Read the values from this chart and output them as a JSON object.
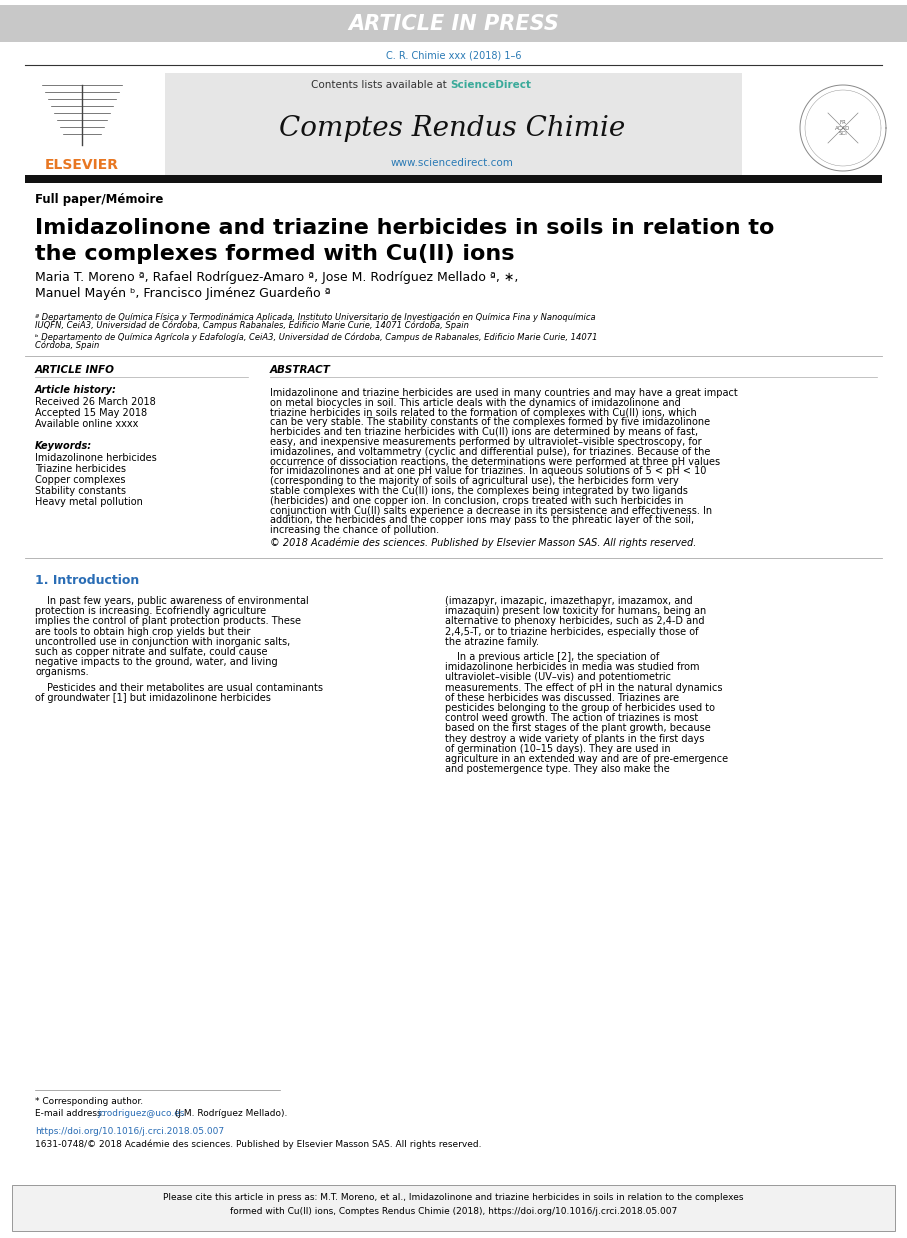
{
  "bg_color": "#ffffff",
  "header_bar_color": "#c8c8c8",
  "header_bar_text": "ARTICLE IN PRESS",
  "header_bar_text_color": "#ffffff",
  "citation_text": "C. R. Chimie xxx (2018) 1–6",
  "citation_color": "#2a7ab5",
  "journal_name": "Comptes Rendus Chimie",
  "contents_text": "Contents lists available at ",
  "sciencedirect_text": "ScienceDirect",
  "sciencedirect_color": "#3aaa9a",
  "website_text": "www.sciencedirect.com",
  "website_color": "#2a7ab5",
  "elsevier_text": "ELSEVIER",
  "elsevier_color": "#e87722",
  "section_label": "Full paper/Mémoire",
  "article_title_line1": "Imidazolinone and triazine herbicides in soils in relation to",
  "article_title_line2": "the complexes formed with Cu(II) ions",
  "authors_line1": "Maria T. Moreno ª, Rafael Rodríguez-Amaro ª, Jose M. Rodríguez Mellado ª, ∗,",
  "authors_line2": "Manuel Mayén ᵇ, Francisco Jiménez Guardeño ª",
  "affil_a_label": "ª",
  "affil_a_text": " Departamento de Química Física y Termodinámica Aplicada, Instituto Universitario de Investigación en Química Fina y Nanoquímica IUQFN, CeiA3, Universidad de Córdoba, Campus Rabanales, Edificio Marie Curie, 14071 Córdoba, Spain",
  "affil_b_label": "ᵇ",
  "affil_b_text": " Departamento de Química Agrícola y Edafología, CeiA3, Universidad de Córdoba, Campus de Rabanales, Edificio Marie Curie, 14071 Córdoba, Spain",
  "article_info_title": "ARTICLE INFO",
  "article_history_title": "Article history:",
  "received": "Received 26 March 2018",
  "accepted": "Accepted 15 May 2018",
  "available": "Available online xxxx",
  "keywords_title": "Keywords:",
  "keywords": [
    "Imidazolinone herbicides",
    "Triazine herbicides",
    "Copper complexes",
    "Stability constants",
    "Heavy metal pollution"
  ],
  "abstract_title": "ABSTRACT",
  "abstract_text": "Imidazolinone and triazine herbicides are used in many countries and may have a great impact on metal biocycles in soil. This article deals with the dynamics of imidazolinone and triazine herbicides in soils related to the formation of complexes with Cu(II) ions, which can be very stable. The stability constants of the complexes formed by five imidazolinone herbicides and ten triazine herbicides with Cu(II) ions are determined by means of fast, easy, and inexpensive measurements performed by ultraviolet–visible spectroscopy, for imidazolines, and voltammetry (cyclic and differential pulse), for triazines. Because of the occurrence of dissociation reactions, the determinations were performed at three pH values for imidazolinones and at one pH value for triazines. In aqueous solutions of 5 < pH < 10 (corresponding to the majority of soils of agricultural use), the herbicides form very stable complexes with the Cu(II) ions, the complexes being integrated by two ligands (herbicides) and one copper ion. In conclusion, crops treated with such herbicides in conjunction with Cu(II) salts experience a decrease in its persistence and effectiveness. In addition, the herbicides and the copper ions may pass to the phreatic layer of the soil, increasing the chance of pollution.",
  "copyright_text": "© 2018 Académie des sciences. Published by Elsevier Masson SAS. All rights reserved.",
  "intro_heading": "1. Introduction",
  "intro_col1_p1": "In past few years, public awareness of environmental protection is increasing. Ecofriendly agriculture implies the control of plant protection products. These are tools to obtain high crop yields but their uncontrolled use in conjunction with inorganic salts, such as copper nitrate and sulfate, could cause negative impacts to the ground, water, and living organisms.",
  "intro_col1_p2": "Pesticides and their metabolites are usual contaminants of groundwater [1] but imidazolinone herbicides",
  "intro_col2_p1": "(imazapyr, imazapic, imazethapyr, imazamox, and imazaquin) present low toxicity for humans, being an alternative to phenoxy herbicides, such as 2,4-D and 2,4,5-T, or to triazine herbicides, especially those of the atrazine family.",
  "intro_col2_p2": "In a previous article [2], the speciation of imidazolinone herbicides in media was studied from ultraviolet–visible (UV–vis) and potentiometric measurements. The effect of pH in the natural dynamics of these herbicides was discussed. Triazines are pesticides belonging to the group of herbicides used to control weed growth. The action of triazines is most based on the first stages of the plant growth, because they destroy a wide variety of plants in the first days of germination (10–15 days). They are used in agriculture in an extended way and are of pre-emergence and postemergence type. They also make the",
  "footnote_star": "* Corresponding author.",
  "footnote_email_label": "E-mail address: ",
  "footnote_email_link": "jrrodriguez@uco.es",
  "footnote_email_suffix": " (J.M. Rodríguez Mellado).",
  "doi_text": "https://doi.org/10.1016/j.crci.2018.05.007",
  "issn_text": "1631-0748/© 2018 Académie des sciences. Published by Elsevier Masson SAS. All rights reserved.",
  "citation_box_line1": "Please cite this article in press as: M.T. Moreno, et al., Imidazolinone and triazine herbicides in soils in relation to the complexes",
  "citation_box_line2": "formed with Cu(II) ions, Comptes Rendus Chimie (2018), https://doi.org/10.1016/j.crci.2018.05.007"
}
